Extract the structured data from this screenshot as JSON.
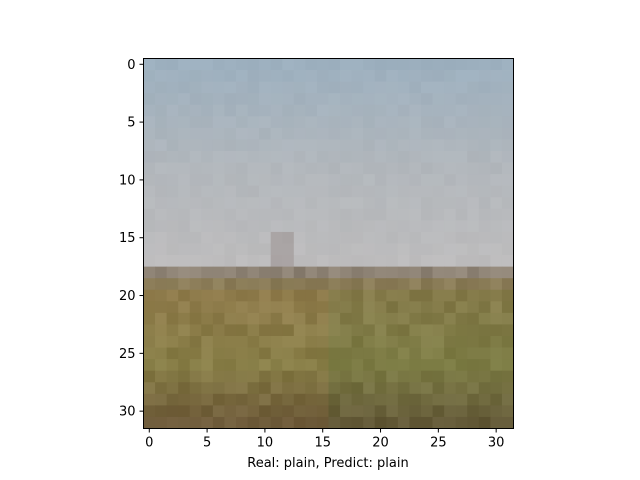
{
  "figure": {
    "image_description": "32x32 pixelated photo of an open grassy plain under a pale overcast sky with a faint small structure on the horizon",
    "image_grid": {
      "rows": 32,
      "cols": 32
    },
    "x_ticks": [
      "0",
      "5",
      "10",
      "15",
      "20",
      "25",
      "30"
    ],
    "y_ticks": [
      "0",
      "5",
      "10",
      "15",
      "20",
      "25",
      "30"
    ],
    "xlabel": "Real: plain, Predict: plain"
  },
  "colors": {
    "sky_top": "#9db0bf",
    "sky_mid": "#b2b7bc",
    "sky_horizon": "#bdbcbd",
    "horizon_band": "#8d8274",
    "field_top": "#8a7a4c",
    "field_mid": "#7f7c45",
    "field_bottom": "#5e4e34"
  }
}
